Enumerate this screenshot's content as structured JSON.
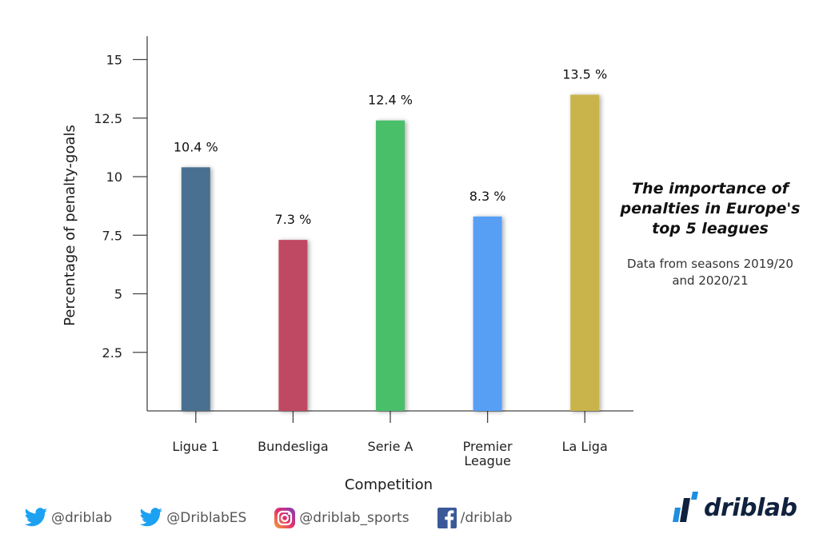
{
  "chart_data": {
    "type": "bar",
    "categories": [
      "Ligue 1",
      "Bundesliga",
      "Serie A",
      "Premier League",
      "La Liga"
    ],
    "category_lines": [
      [
        "Ligue 1"
      ],
      [
        "Bundesliga"
      ],
      [
        "Serie A"
      ],
      [
        "Premier",
        "League"
      ],
      [
        "La Liga"
      ]
    ],
    "values": [
      10.4,
      7.3,
      12.4,
      8.3,
      13.5
    ],
    "data_labels": [
      "10.4 %",
      "7.3 %",
      "12.4 %",
      "8.3 %",
      "13.5 %"
    ],
    "bar_colors": [
      "#4a7090",
      "#bf4a62",
      "#48bf6a",
      "#579ff5",
      "#c9b34c"
    ],
    "xlabel": "Competition",
    "ylabel": "Percentage of penalty-goals",
    "ylim": [
      0,
      16
    ],
    "yticks": [
      2.5,
      5,
      7.5,
      10,
      12.5,
      15
    ],
    "ytick_labels": [
      "2.5",
      "5",
      "7.5",
      "10",
      "12.5",
      "15"
    ],
    "grid": false,
    "legend": "none"
  },
  "side_panel": {
    "title": "The importance of penalties in Europe's top 5 leagues",
    "subtitle": "Data from seasons 2019/20 and 2020/21"
  },
  "footer": {
    "twitter_1": "@driblab",
    "twitter_2": "@DriblabES",
    "instagram": "@driblab_sports",
    "facebook": "/driblab",
    "brand": "driblab"
  }
}
